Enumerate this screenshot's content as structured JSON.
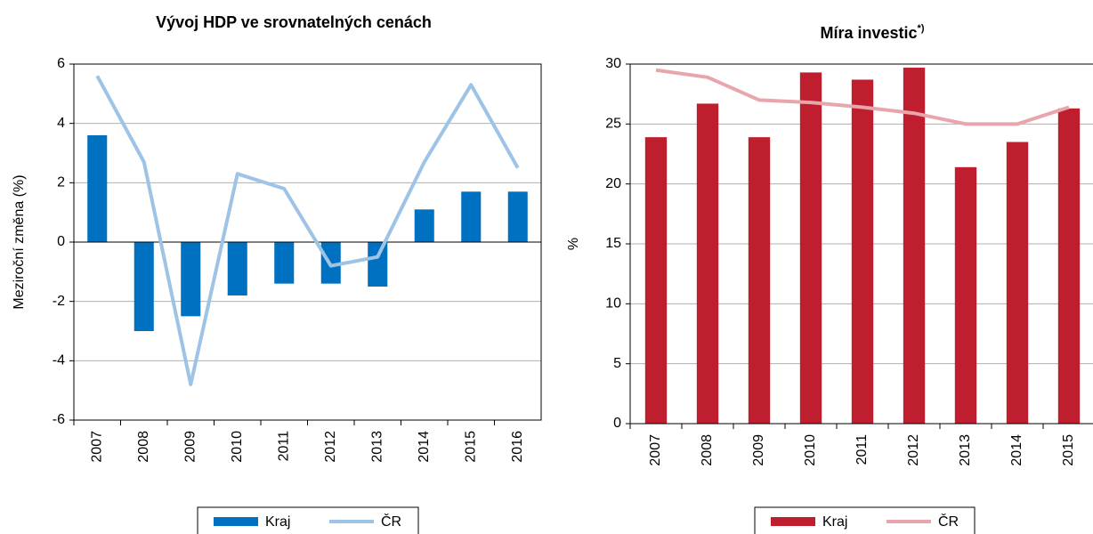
{
  "chart_data": [
    {
      "type": "bar_line",
      "title": "Vývoj HDP ve srovnatelných cenách",
      "y_label": "Meziroční změna (%)",
      "categories": [
        "2007",
        "2008",
        "2009",
        "2010",
        "2011",
        "2012",
        "2013",
        "2014",
        "2015",
        "2016"
      ],
      "series": [
        {
          "name": "Kraj",
          "kind": "bar",
          "color": "#0070c0",
          "values": [
            3.6,
            -3.0,
            -2.5,
            -1.8,
            -1.4,
            -1.4,
            -1.5,
            1.1,
            1.7,
            1.7
          ]
        },
        {
          "name": "ČR",
          "kind": "line",
          "color": "#9dc3e6",
          "values": [
            5.6,
            2.7,
            -4.8,
            2.3,
            1.8,
            -0.8,
            -0.5,
            2.7,
            5.3,
            2.5
          ]
        }
      ],
      "ylim": [
        -6,
        6
      ],
      "yticks": [
        -6,
        -4,
        -2,
        0,
        2,
        4,
        6
      ],
      "grid": true,
      "legend": "bottom"
    },
    {
      "type": "bar_line",
      "title": "Míra investic",
      "title_note": "*)",
      "y_label": "%",
      "categories": [
        "2007",
        "2008",
        "2009",
        "2010",
        "2011",
        "2012",
        "2013",
        "2014",
        "2015"
      ],
      "series": [
        {
          "name": "Kraj",
          "kind": "bar",
          "color": "#be1e2d",
          "values": [
            23.9,
            26.7,
            23.9,
            29.3,
            28.7,
            29.7,
            21.4,
            23.5,
            26.3
          ]
        },
        {
          "name": "ČR",
          "kind": "line",
          "color": "#e8a5ab",
          "values": [
            29.5,
            28.9,
            27.0,
            26.8,
            26.4,
            25.9,
            25.0,
            25.0,
            26.4
          ]
        }
      ],
      "ylim": [
        0,
        30
      ],
      "yticks": [
        0,
        5,
        10,
        15,
        20,
        25,
        30
      ],
      "grid": true,
      "legend": "bottom"
    }
  ]
}
